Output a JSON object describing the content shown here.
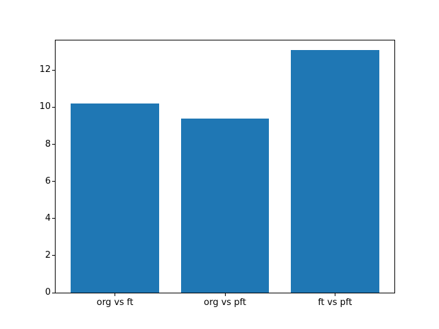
{
  "chart_data": {
    "type": "bar",
    "title": "",
    "categories": [
      "org vs ft",
      "org vs pft",
      "ft vs pft"
    ],
    "values": [
      10.2,
      9.4,
      13.1
    ],
    "xlabel": "",
    "ylabel": "",
    "yticks": [
      0,
      2,
      4,
      6,
      8,
      10,
      12
    ],
    "ylim": [
      0,
      13.6
    ],
    "xlim": [
      -0.54,
      2.54
    ],
    "bar_width_units": 0.8,
    "grid": false,
    "legend": false,
    "colors": {
      "bar": "#1f77b4",
      "axis": "#000000",
      "tick_label": "#000000",
      "background": "#ffffff"
    }
  }
}
